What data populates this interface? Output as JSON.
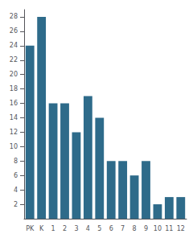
{
  "chart_data": {
    "type": "bar",
    "categories": [
      "PK",
      "K",
      "1",
      "2",
      "3",
      "4",
      "5",
      "6",
      "7",
      "8",
      "9",
      "10",
      "11",
      "12"
    ],
    "values": [
      24,
      28,
      16,
      16,
      12,
      17,
      14,
      8,
      8,
      6,
      8,
      2,
      3,
      3
    ],
    "color": "#2e6b8a",
    "ylim": [
      0,
      29
    ],
    "yticks": [
      2,
      4,
      6,
      8,
      10,
      12,
      14,
      16,
      18,
      20,
      22,
      24,
      26,
      28
    ],
    "grid": false
  }
}
